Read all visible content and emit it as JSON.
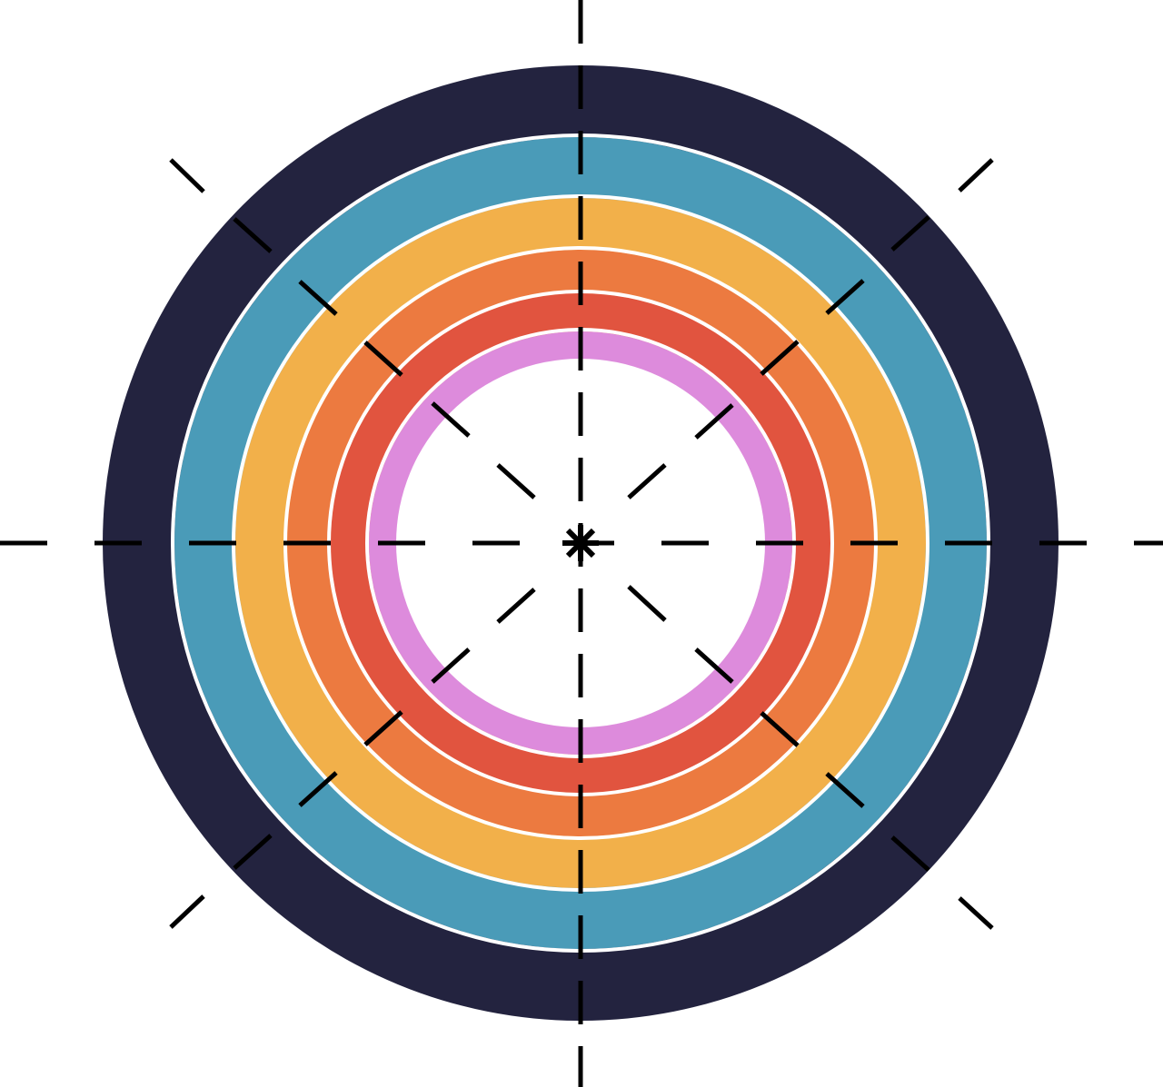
{
  "graphic": {
    "subject": "concentric-target",
    "background": "#ffffff",
    "rings": [
      {
        "name": "outer-navy",
        "color": "#23233f"
      },
      {
        "name": "blue",
        "color": "#4a9bb8"
      },
      {
        "name": "yellow",
        "color": "#f2b04a"
      },
      {
        "name": "orange",
        "color": "#ec7a40"
      },
      {
        "name": "red",
        "color": "#e1543f"
      },
      {
        "name": "pink",
        "color": "#dd8bdc"
      },
      {
        "name": "center",
        "color": "#ffffff"
      }
    ],
    "separator_color": "#ffffff",
    "crosshair": {
      "color": "#000000",
      "style": "dashed",
      "directions": [
        "horizontal",
        "vertical",
        "diagonal-down",
        "diagonal-up"
      ]
    },
    "center_mark": {
      "icon": "asterisk-icon",
      "color": "#000000"
    }
  }
}
